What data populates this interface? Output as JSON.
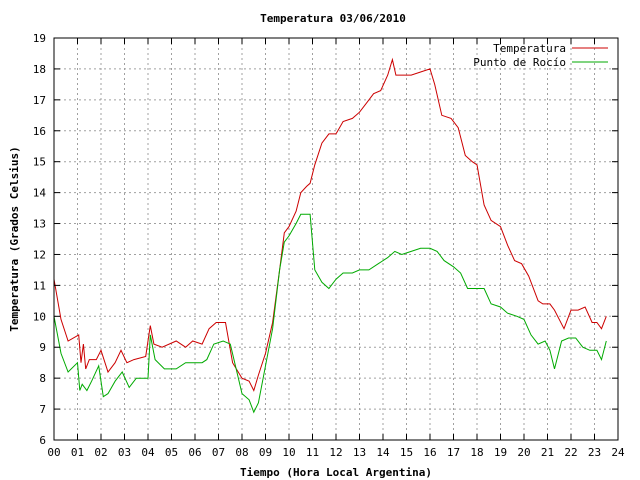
{
  "chart_data": {
    "type": "line",
    "title": "Temperatura 03/06/2010",
    "xlabel": "Tiempo (Hora Local Argentina)",
    "ylabel": "Temperatura (Grados Celsius)",
    "xlim": [
      0,
      24
    ],
    "ylim": [
      6,
      19
    ],
    "x_ticks": [
      0,
      1,
      2,
      3,
      4,
      5,
      6,
      7,
      8,
      9,
      10,
      11,
      12,
      13,
      14,
      15,
      16,
      17,
      18,
      19,
      20,
      21,
      22,
      23,
      24
    ],
    "x_tick_labels": [
      "00",
      "01",
      "02",
      "03",
      "04",
      "05",
      "06",
      "07",
      "08",
      "09",
      "10",
      "11",
      "12",
      "13",
      "14",
      "15",
      "16",
      "17",
      "18",
      "19",
      "20",
      "21",
      "22",
      "23",
      "24"
    ],
    "y_ticks": [
      6,
      7,
      8,
      9,
      10,
      11,
      12,
      13,
      14,
      15,
      16,
      17,
      18,
      19
    ],
    "y_tick_labels": [
      "6",
      "7",
      "8",
      "9",
      "10",
      "11",
      "12",
      "13",
      "14",
      "15",
      "16",
      "17",
      "18",
      "19"
    ],
    "grid": true,
    "legend_position": "top-right",
    "series": [
      {
        "name": "Temperatura",
        "color": "#cc0000",
        "x": [
          0,
          0.3,
          0.6,
          1.05,
          1.15,
          1.25,
          1.35,
          1.5,
          1.8,
          2.0,
          2.3,
          2.6,
          2.85,
          3.1,
          3.4,
          3.9,
          4.1,
          4.25,
          4.6,
          5.2,
          5.6,
          5.9,
          6.3,
          6.6,
          6.9,
          7.3,
          7.6,
          8.0,
          8.3,
          8.5,
          8.7,
          9.0,
          9.3,
          9.6,
          9.8,
          10.0,
          10.3,
          10.5,
          10.75,
          10.9,
          11.1,
          11.4,
          11.7,
          12.0,
          12.3,
          12.7,
          13.0,
          13.3,
          13.6,
          13.9,
          14.2,
          14.4,
          14.55,
          14.8,
          15.2,
          15.6,
          16.0,
          16.2,
          16.5,
          16.9,
          17.2,
          17.5,
          17.8,
          18.0,
          18.3,
          18.6,
          19.0,
          19.3,
          19.6,
          19.9,
          20.2,
          20.6,
          20.8,
          21.1,
          21.3,
          21.7,
          22.0,
          22.3,
          22.6,
          22.9,
          23.1,
          23.3,
          23.5
        ],
        "values": [
          11.2,
          9.9,
          9.2,
          9.4,
          8.5,
          9.1,
          8.3,
          8.6,
          8.6,
          8.9,
          8.2,
          8.5,
          8.9,
          8.5,
          8.6,
          8.7,
          9.7,
          9.1,
          9.0,
          9.2,
          9.0,
          9.2,
          9.1,
          9.6,
          9.8,
          9.8,
          8.5,
          8.0,
          7.9,
          7.6,
          8.1,
          8.8,
          9.8,
          11.5,
          12.7,
          12.9,
          13.4,
          14.0,
          14.2,
          14.3,
          14.9,
          15.6,
          15.9,
          15.9,
          16.3,
          16.4,
          16.6,
          16.9,
          17.2,
          17.3,
          17.8,
          18.3,
          17.8,
          17.8,
          17.8,
          17.9,
          18.0,
          17.5,
          16.5,
          16.4,
          16.1,
          15.2,
          15.0,
          14.9,
          13.6,
          13.1,
          12.9,
          12.3,
          11.8,
          11.7,
          11.3,
          10.5,
          10.4,
          10.4,
          10.2,
          9.6,
          10.2,
          10.2,
          10.3,
          9.8,
          9.8,
          9.6,
          10.0
        ],
        "labels": []
      },
      {
        "name": "Punto de Rocío",
        "color": "#00aa00",
        "x": [
          0,
          0.3,
          0.6,
          1.0,
          1.1,
          1.2,
          1.4,
          1.6,
          1.9,
          2.1,
          2.3,
          2.6,
          2.9,
          3.2,
          3.5,
          4.0,
          4.1,
          4.3,
          4.7,
          5.2,
          5.6,
          5.9,
          6.3,
          6.5,
          6.8,
          7.2,
          7.5,
          8.0,
          8.3,
          8.5,
          8.7,
          9.0,
          9.3,
          9.6,
          9.8,
          10.0,
          10.3,
          10.5,
          10.75,
          10.9,
          11.1,
          11.4,
          11.7,
          12.0,
          12.3,
          12.7,
          13.0,
          13.4,
          13.8,
          14.2,
          14.5,
          14.8,
          15.2,
          15.6,
          16.0,
          16.3,
          16.6,
          17.0,
          17.3,
          17.6,
          18.0,
          18.3,
          18.6,
          19.0,
          19.3,
          19.7,
          20.0,
          20.3,
          20.6,
          20.9,
          21.1,
          21.3,
          21.6,
          21.9,
          22.2,
          22.5,
          22.8,
          23.1,
          23.3,
          23.5
        ],
        "values": [
          10.0,
          8.8,
          8.2,
          8.5,
          7.6,
          7.8,
          7.6,
          7.9,
          8.4,
          7.4,
          7.5,
          7.9,
          8.2,
          7.7,
          8.0,
          8.0,
          9.4,
          8.6,
          8.3,
          8.3,
          8.5,
          8.5,
          8.5,
          8.6,
          9.1,
          9.2,
          9.1,
          7.5,
          7.3,
          6.9,
          7.2,
          8.4,
          9.6,
          11.5,
          12.4,
          12.6,
          13.0,
          13.3,
          13.3,
          13.3,
          11.5,
          11.1,
          10.9,
          11.2,
          11.4,
          11.4,
          11.5,
          11.5,
          11.7,
          11.9,
          12.1,
          12.0,
          12.1,
          12.2,
          12.2,
          12.1,
          11.8,
          11.6,
          11.4,
          10.9,
          10.9,
          10.9,
          10.4,
          10.3,
          10.1,
          10.0,
          9.9,
          9.4,
          9.1,
          9.2,
          8.9,
          8.3,
          9.2,
          9.3,
          9.3,
          9.0,
          8.9,
          8.9,
          8.6,
          9.2
        ],
        "labels": []
      }
    ]
  }
}
